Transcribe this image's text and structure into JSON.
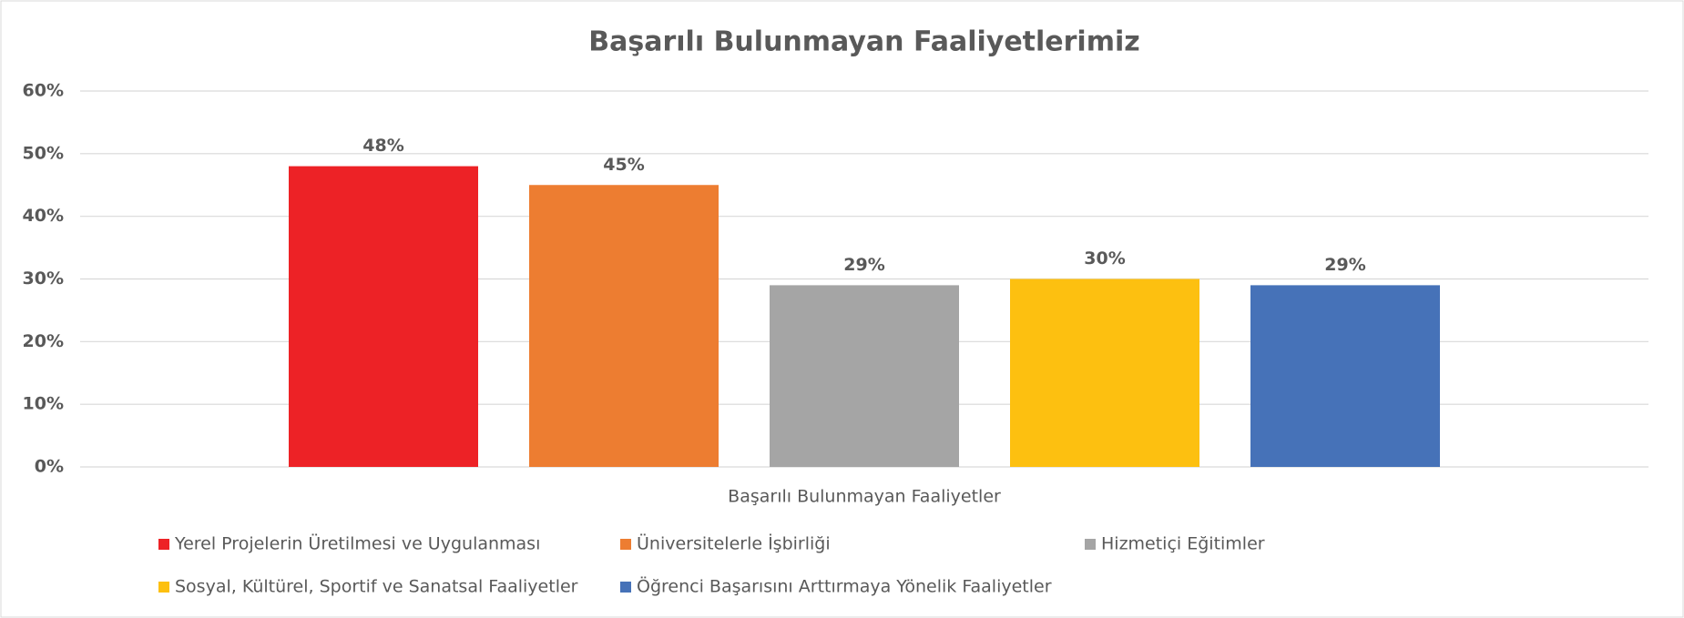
{
  "chart_data": {
    "type": "bar",
    "title": "Başarılı Bulunmayan Faaliyetlerimiz",
    "categories": [
      "Başarılı Bulunmayan Faaliyetler"
    ],
    "series": [
      {
        "name": "Yerel Projelerin Üretilmesi ve Uygulanması",
        "color": "#ed2226",
        "values": [
          48
        ],
        "value_labels": [
          "48%"
        ]
      },
      {
        "name": "Üniversitelerle İşbirliği",
        "color": "#ed7d31",
        "values": [
          45
        ],
        "value_labels": [
          "45%"
        ]
      },
      {
        "name": "Hizmetiçi Eğitimler",
        "color": "#a5a5a5",
        "values": [
          29
        ],
        "value_labels": [
          "29%"
        ]
      },
      {
        "name": "Sosyal, Kültürel, Sportif ve Sanatsal Faaliyetler",
        "color": "#fdc010",
        "values": [
          30
        ],
        "value_labels": [
          "30%"
        ]
      },
      {
        "name": "Öğrenci Başarısını Arttırmaya Yönelik Faaliyetler",
        "color": "#4672b8",
        "values": [
          29
        ],
        "value_labels": [
          "29%"
        ]
      }
    ],
    "ylim": [
      0,
      60
    ],
    "yticks": [
      {
        "value": 0,
        "label": "0%"
      },
      {
        "value": 10,
        "label": "10%"
      },
      {
        "value": 20,
        "label": "20%"
      },
      {
        "value": 30,
        "label": "30%"
      },
      {
        "value": 40,
        "label": "40%"
      },
      {
        "value": 50,
        "label": "50%"
      },
      {
        "value": 60,
        "label": "60%"
      }
    ],
    "grid": true,
    "legend": "bottom"
  }
}
